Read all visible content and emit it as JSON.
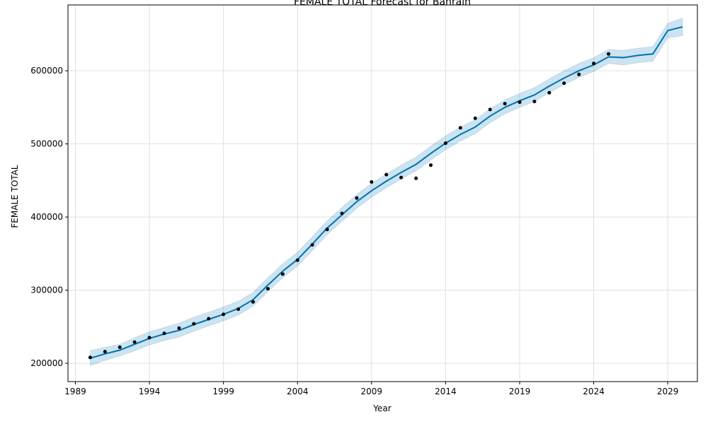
{
  "chart_data": {
    "type": "line",
    "title": "FEMALE TOTAL Forecast for Bahrain",
    "xlabel": "Year",
    "ylabel": "FEMALE TOTAL",
    "xlim": [
      1988.5,
      2031.0
    ],
    "ylim": [
      175000,
      690000
    ],
    "x_ticks": [
      1989,
      1994,
      1999,
      2004,
      2009,
      2014,
      2019,
      2024,
      2029
    ],
    "y_ticks": [
      200000,
      300000,
      400000,
      500000,
      600000
    ],
    "grid": true,
    "colors": {
      "forecast_line": "#0072B2",
      "interval_fill": "#0072B2",
      "observed_points": "#000000"
    },
    "series": [
      {
        "kind": "observed-points",
        "x": [
          1990,
          1991,
          1992,
          1993,
          1994,
          1995,
          1996,
          1997,
          1998,
          1999,
          2000,
          2001,
          2002,
          2003,
          2004,
          2005,
          2006,
          2007,
          2008,
          2009,
          2010,
          2011,
          2012,
          2013,
          2014,
          2015,
          2016,
          2017,
          2018,
          2019,
          2020,
          2021,
          2022,
          2023,
          2024,
          2025
        ],
        "values": [
          208000,
          216000,
          222000,
          229000,
          235000,
          241000,
          248000,
          254000,
          261000,
          267000,
          274000,
          284000,
          302000,
          322000,
          341000,
          362000,
          383000,
          405000,
          426000,
          448000,
          458000,
          454000,
          453000,
          471000,
          501000,
          522000,
          535000,
          547000,
          555000,
          557000,
          558000,
          570000,
          583000,
          595000,
          610000,
          623000
        ]
      },
      {
        "kind": "forecast-line",
        "x": [
          1990,
          1991,
          1992,
          1993,
          1994,
          1995,
          1996,
          1997,
          1998,
          1999,
          2000,
          2001,
          2002,
          2003,
          2004,
          2005,
          2006,
          2007,
          2008,
          2009,
          2010,
          2011,
          2012,
          2013,
          2014,
          2015,
          2016,
          2017,
          2018,
          2019,
          2020,
          2021,
          2022,
          2023,
          2024,
          2025,
          2026,
          2027,
          2028,
          2029,
          2030
        ],
        "values": [
          207000,
          213000,
          218000,
          226000,
          234000,
          240000,
          245000,
          253000,
          260000,
          267000,
          275000,
          287000,
          307000,
          326000,
          342000,
          363000,
          385000,
          403000,
          421000,
          436000,
          449000,
          461000,
          472000,
          487000,
          501000,
          513000,
          523000,
          538000,
          550000,
          559000,
          567000,
          579000,
          590000,
          600000,
          608000,
          619000,
          618000,
          621000,
          623000,
          655000,
          660000
        ]
      },
      {
        "kind": "uncertainty-upper",
        "x": [
          1990,
          1991,
          1992,
          1993,
          1994,
          1995,
          1996,
          1997,
          1998,
          1999,
          2000,
          2001,
          2002,
          2003,
          2004,
          2005,
          2006,
          2007,
          2008,
          2009,
          2010,
          2011,
          2012,
          2013,
          2014,
          2015,
          2016,
          2017,
          2018,
          2019,
          2020,
          2021,
          2022,
          2023,
          2024,
          2025,
          2026,
          2027,
          2028,
          2029,
          2030
        ],
        "values": [
          217000,
          222000,
          226000,
          235000,
          243000,
          249000,
          255000,
          263000,
          270000,
          277000,
          285000,
          297000,
          317000,
          336000,
          352000,
          373000,
          395000,
          413000,
          431000,
          446000,
          459000,
          471000,
          482000,
          497000,
          511000,
          523000,
          533000,
          548000,
          560000,
          569000,
          577000,
          589000,
          600000,
          610000,
          618000,
          629000,
          628000,
          631000,
          633000,
          665000,
          672000
        ]
      },
      {
        "kind": "uncertainty-lower",
        "x": [
          1990,
          1991,
          1992,
          1993,
          1994,
          1995,
          1996,
          1997,
          1998,
          1999,
          2000,
          2001,
          2002,
          2003,
          2004,
          2005,
          2006,
          2007,
          2008,
          2009,
          2010,
          2011,
          2012,
          2013,
          2014,
          2015,
          2016,
          2017,
          2018,
          2019,
          2020,
          2021,
          2022,
          2023,
          2024,
          2025,
          2026,
          2027,
          2028,
          2029,
          2030
        ],
        "values": [
          197000,
          204000,
          210000,
          217000,
          225000,
          231000,
          236000,
          244000,
          251000,
          258000,
          266000,
          278000,
          298000,
          317000,
          333000,
          354000,
          376000,
          394000,
          412000,
          427000,
          440000,
          452000,
          463000,
          478000,
          492000,
          504000,
          514000,
          529000,
          541000,
          550000,
          558000,
          570000,
          581000,
          591000,
          599000,
          610000,
          608000,
          611000,
          613000,
          645000,
          648000
        ]
      }
    ]
  }
}
